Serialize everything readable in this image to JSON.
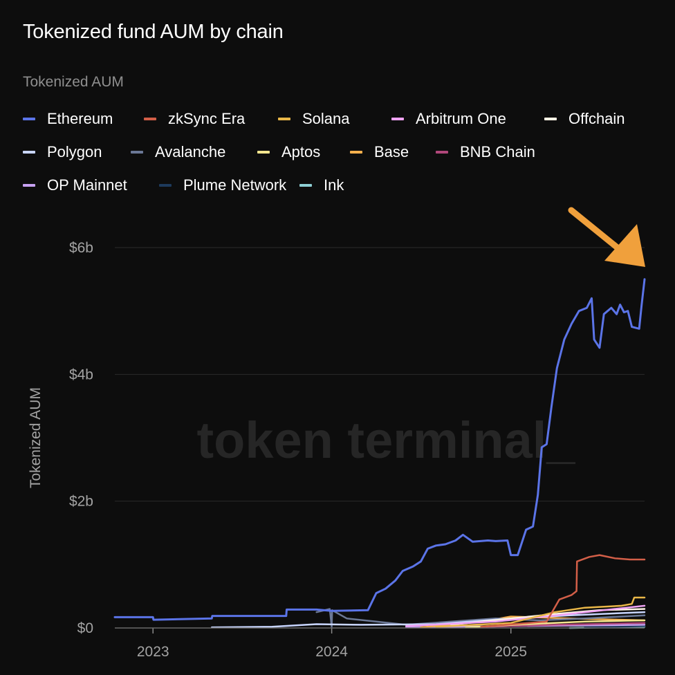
{
  "title": "Tokenized fund AUM by chain",
  "legend": {
    "title": "Tokenized AUM",
    "rows": [
      [
        {
          "name": "Ethereum",
          "color": "#5b74e8"
        },
        {
          "name": "zkSync Era",
          "color": "#d35f48"
        },
        {
          "name": "Solana",
          "color": "#e9b748"
        },
        {
          "name": "Arbitrum One",
          "color": "#f0a3f5"
        },
        {
          "name": "Offchain",
          "color": "#fff5e6"
        }
      ],
      [
        {
          "name": "Polygon",
          "color": "#c9d6ff"
        },
        {
          "name": "Avalanche",
          "color": "#6b7896"
        },
        {
          "name": "Aptos",
          "color": "#f3e58e"
        },
        {
          "name": "Base",
          "color": "#f5b04d"
        },
        {
          "name": "BNB Chain",
          "color": "#b0477a"
        }
      ],
      [
        {
          "name": "OP Mainnet",
          "color": "#c7a1f2"
        },
        {
          "name": "Plume Network",
          "color": "#1d3a5c"
        },
        {
          "name": "Ink",
          "color": "#8ecfd4"
        }
      ]
    ]
  },
  "watermark": "token terminal_",
  "annotation": {
    "type": "arrow",
    "color": "#f0a03c",
    "points_to": "Ethereum latest value"
  },
  "chart_data": {
    "type": "line",
    "ylabel": "Tokenized AUM",
    "xlabel": "",
    "y_unit": "billions USD",
    "ylim": [
      0,
      6
    ],
    "yticks": [
      {
        "value": 0,
        "label": "$0"
      },
      {
        "value": 2,
        "label": "$2b"
      },
      {
        "value": 4,
        "label": "$4b"
      },
      {
        "value": 6,
        "label": "$6b"
      }
    ],
    "xlim": [
      "2022-10-15",
      "2025-10-01"
    ],
    "xticks": [
      {
        "value": "2023-01-01",
        "label": "2023"
      },
      {
        "value": "2024-01-01",
        "label": "2024"
      },
      {
        "value": "2025-01-01",
        "label": "2025"
      }
    ],
    "grid": "horizontal",
    "series": [
      {
        "name": "Ethereum",
        "color": "#5b74e8",
        "points": [
          [
            "2022-10-15",
            0.17
          ],
          [
            "2023-01-01",
            0.17
          ],
          [
            "2023-01-02",
            0.13
          ],
          [
            "2023-05-01",
            0.15
          ],
          [
            "2023-05-02",
            0.19
          ],
          [
            "2023-09-30",
            0.19
          ],
          [
            "2023-10-01",
            0.29
          ],
          [
            "2023-12-01",
            0.29
          ],
          [
            "2024-01-01",
            0.27
          ],
          [
            "2024-03-15",
            0.28
          ],
          [
            "2024-04-01",
            0.55
          ],
          [
            "2024-04-20",
            0.62
          ],
          [
            "2024-05-10",
            0.75
          ],
          [
            "2024-05-25",
            0.9
          ],
          [
            "2024-06-15",
            0.97
          ],
          [
            "2024-07-01",
            1.05
          ],
          [
            "2024-07-15",
            1.25
          ],
          [
            "2024-08-01",
            1.3
          ],
          [
            "2024-08-20",
            1.32
          ],
          [
            "2024-09-10",
            1.38
          ],
          [
            "2024-09-25",
            1.47
          ],
          [
            "2024-10-15",
            1.36
          ],
          [
            "2024-11-15",
            1.38
          ],
          [
            "2024-12-01",
            1.37
          ],
          [
            "2024-12-25",
            1.38
          ],
          [
            "2025-01-01",
            1.15
          ],
          [
            "2025-01-15",
            1.15
          ],
          [
            "2025-02-01",
            1.55
          ],
          [
            "2025-02-15",
            1.6
          ],
          [
            "2025-02-25",
            2.1
          ],
          [
            "2025-03-05",
            2.85
          ],
          [
            "2025-03-15",
            2.9
          ],
          [
            "2025-03-25",
            3.5
          ],
          [
            "2025-04-05",
            4.1
          ],
          [
            "2025-04-20",
            4.55
          ],
          [
            "2025-05-05",
            4.8
          ],
          [
            "2025-05-20",
            5.0
          ],
          [
            "2025-06-05",
            5.05
          ],
          [
            "2025-06-15",
            5.2
          ],
          [
            "2025-06-20",
            4.55
          ],
          [
            "2025-07-01",
            4.42
          ],
          [
            "2025-07-10",
            4.95
          ],
          [
            "2025-07-25",
            5.05
          ],
          [
            "2025-08-05",
            4.95
          ],
          [
            "2025-08-12",
            5.1
          ],
          [
            "2025-08-20",
            4.98
          ],
          [
            "2025-08-28",
            5.0
          ],
          [
            "2025-09-05",
            4.75
          ],
          [
            "2025-09-20",
            4.72
          ],
          [
            "2025-09-25",
            5.1
          ],
          [
            "2025-10-01",
            5.5
          ]
        ]
      },
      {
        "name": "zkSync Era",
        "color": "#d35f48",
        "points": [
          [
            "2024-11-01",
            0.02
          ],
          [
            "2025-03-15",
            0.1
          ],
          [
            "2025-04-10",
            0.45
          ],
          [
            "2025-05-05",
            0.52
          ],
          [
            "2025-05-15",
            0.58
          ],
          [
            "2025-05-16",
            1.05
          ],
          [
            "2025-06-10",
            1.12
          ],
          [
            "2025-07-01",
            1.15
          ],
          [
            "2025-08-01",
            1.1
          ],
          [
            "2025-09-01",
            1.08
          ],
          [
            "2025-10-01",
            1.08
          ]
        ]
      },
      {
        "name": "Solana",
        "color": "#e9b748",
        "points": [
          [
            "2024-08-01",
            0.02
          ],
          [
            "2025-01-01",
            0.08
          ],
          [
            "2025-04-01",
            0.25
          ],
          [
            "2025-06-01",
            0.32
          ],
          [
            "2025-08-15",
            0.35
          ],
          [
            "2025-09-05",
            0.38
          ],
          [
            "2025-09-10",
            0.48
          ],
          [
            "2025-10-01",
            0.48
          ]
        ]
      },
      {
        "name": "Arbitrum One",
        "color": "#f0a3f5",
        "points": [
          [
            "2024-06-01",
            0.03
          ],
          [
            "2024-12-01",
            0.1
          ],
          [
            "2025-05-01",
            0.22
          ],
          [
            "2025-08-01",
            0.3
          ],
          [
            "2025-10-01",
            0.35
          ]
        ]
      },
      {
        "name": "Offchain",
        "color": "#fff5e6",
        "points": [
          [
            "2024-09-01",
            0.05
          ],
          [
            "2025-01-01",
            0.15
          ],
          [
            "2025-04-01",
            0.22
          ],
          [
            "2025-07-01",
            0.28
          ],
          [
            "2025-10-01",
            0.3
          ]
        ]
      },
      {
        "name": "Polygon",
        "color": "#c9d6ff",
        "points": [
          [
            "2023-05-01",
            0.01
          ],
          [
            "2023-09-01",
            0.02
          ],
          [
            "2023-12-01",
            0.06
          ],
          [
            "2024-03-01",
            0.05
          ],
          [
            "2024-08-01",
            0.06
          ],
          [
            "2025-01-01",
            0.15
          ],
          [
            "2025-05-01",
            0.2
          ],
          [
            "2025-10-01",
            0.25
          ]
        ]
      },
      {
        "name": "Avalanche",
        "color": "#6b7896",
        "points": [
          [
            "2023-12-01",
            0.25
          ],
          [
            "2023-12-28",
            0.3
          ],
          [
            "2024-01-01",
            0.02
          ],
          [
            "2024-01-02",
            0.28
          ],
          [
            "2024-02-01",
            0.15
          ],
          [
            "2024-04-01",
            0.1
          ],
          [
            "2024-06-01",
            0.05
          ],
          [
            "2024-09-01",
            0.1
          ],
          [
            "2024-12-01",
            0.15
          ],
          [
            "2025-03-01",
            0.12
          ],
          [
            "2025-06-01",
            0.15
          ],
          [
            "2025-10-01",
            0.2
          ]
        ]
      },
      {
        "name": "Aptos",
        "color": "#f3e58e",
        "points": [
          [
            "2024-10-01",
            0.01
          ],
          [
            "2025-02-01",
            0.06
          ],
          [
            "2025-06-01",
            0.1
          ],
          [
            "2025-10-01",
            0.12
          ]
        ]
      },
      {
        "name": "Base",
        "color": "#f5b04d",
        "points": [
          [
            "2024-07-01",
            0.01
          ],
          [
            "2024-11-01",
            0.1
          ],
          [
            "2025-01-01",
            0.18
          ],
          [
            "2025-05-01",
            0.15
          ],
          [
            "2025-10-01",
            0.12
          ]
        ]
      },
      {
        "name": "BNB Chain",
        "color": "#b0477a",
        "points": [
          [
            "2024-10-01",
            0.01
          ],
          [
            "2025-04-01",
            0.05
          ],
          [
            "2025-10-01",
            0.08
          ]
        ]
      },
      {
        "name": "OP Mainnet",
        "color": "#c7a1f2",
        "points": [
          [
            "2024-06-01",
            0.01
          ],
          [
            "2025-01-01",
            0.03
          ],
          [
            "2025-10-01",
            0.05
          ]
        ]
      },
      {
        "name": "Plume Network",
        "color": "#1d3a5c",
        "points": [
          [
            "2025-06-01",
            0.01
          ],
          [
            "2025-10-01",
            0.03
          ]
        ]
      },
      {
        "name": "Ink",
        "color": "#8ecfd4",
        "points": [
          [
            "2025-05-01",
            0.0
          ],
          [
            "2025-10-01",
            0.02
          ]
        ]
      }
    ]
  }
}
